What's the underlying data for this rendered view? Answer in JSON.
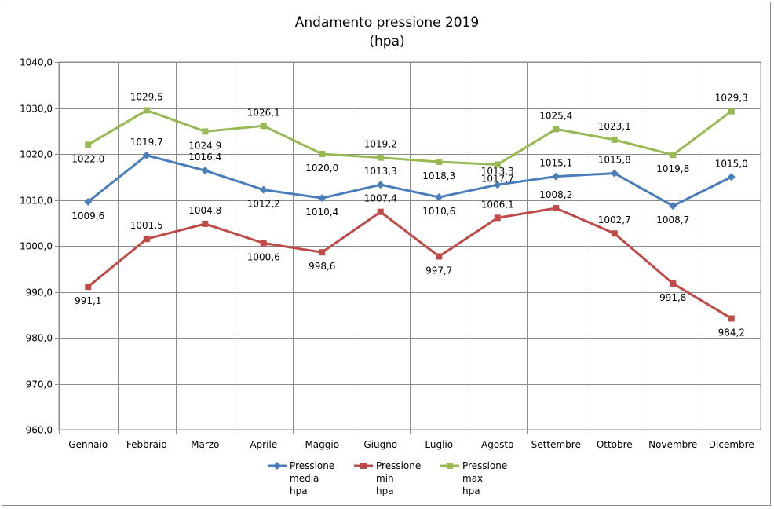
{
  "chart_data": {
    "type": "line",
    "title": "Andamento pressione 2019",
    "subtitle": "(hpa)",
    "categories": [
      "Gennaio",
      "Febbraio",
      "Marzo",
      "Aprile",
      "Maggio",
      "Giugno",
      "Luglio",
      "Agosto",
      "Settembre",
      "Ottobre",
      "Novembre",
      "Dicembre"
    ],
    "ylim": [
      960,
      1040
    ],
    "yticks": [
      960,
      970,
      980,
      990,
      1000,
      1010,
      1020,
      1030,
      1040
    ],
    "ytick_labels": [
      "960,0",
      "970,0",
      "980,0",
      "990,0",
      "1000,0",
      "1010,0",
      "1020,0",
      "1030,0",
      "1040,0"
    ],
    "grid": true,
    "legend_position": "bottom",
    "series": [
      {
        "name_lines": [
          "Pressione",
          "media",
          "hpa"
        ],
        "color": "#4a7ebb",
        "marker": "diamond",
        "values": [
          1009.6,
          1019.7,
          1016.4,
          1012.2,
          1010.4,
          1013.3,
          1010.6,
          1013.3,
          1015.1,
          1015.8,
          1008.7,
          1015.0
        ],
        "labels": [
          "1009,6",
          "1019,7",
          "1016,4",
          "1012,2",
          "1010,4",
          "1013,3",
          "1010,6",
          "1013,3",
          "1015,1",
          "1015,8",
          "1008,7",
          "1015,0"
        ]
      },
      {
        "name_lines": [
          "Pressione",
          "min",
          "hpa"
        ],
        "color": "#be4b48",
        "marker": "square",
        "values": [
          991.1,
          1001.5,
          1004.8,
          1000.6,
          998.6,
          1007.4,
          997.7,
          1006.1,
          1008.2,
          1002.7,
          991.8,
          984.2
        ],
        "labels": [
          "991,1",
          "1001,5",
          "1004,8",
          "1000,6",
          "998,6",
          "1007,4",
          "997,7",
          "1006,1",
          "1008,2",
          "1002,7",
          "991,8",
          "984,2"
        ]
      },
      {
        "name_lines": [
          "Pressione",
          "max",
          "hpa"
        ],
        "color": "#98b954",
        "marker": "square",
        "values": [
          1022.0,
          1029.5,
          1024.9,
          1026.1,
          1020.0,
          1019.2,
          1018.3,
          1017.7,
          1025.4,
          1023.1,
          1019.8,
          1029.3
        ],
        "labels": [
          "1022,0",
          "1029,5",
          "1024,9",
          "1026,1",
          "1020,0",
          "1019,2",
          "1018,3",
          "1017,7",
          "1025,4",
          "1023,1",
          "1019,8",
          "1029,3"
        ]
      }
    ]
  }
}
